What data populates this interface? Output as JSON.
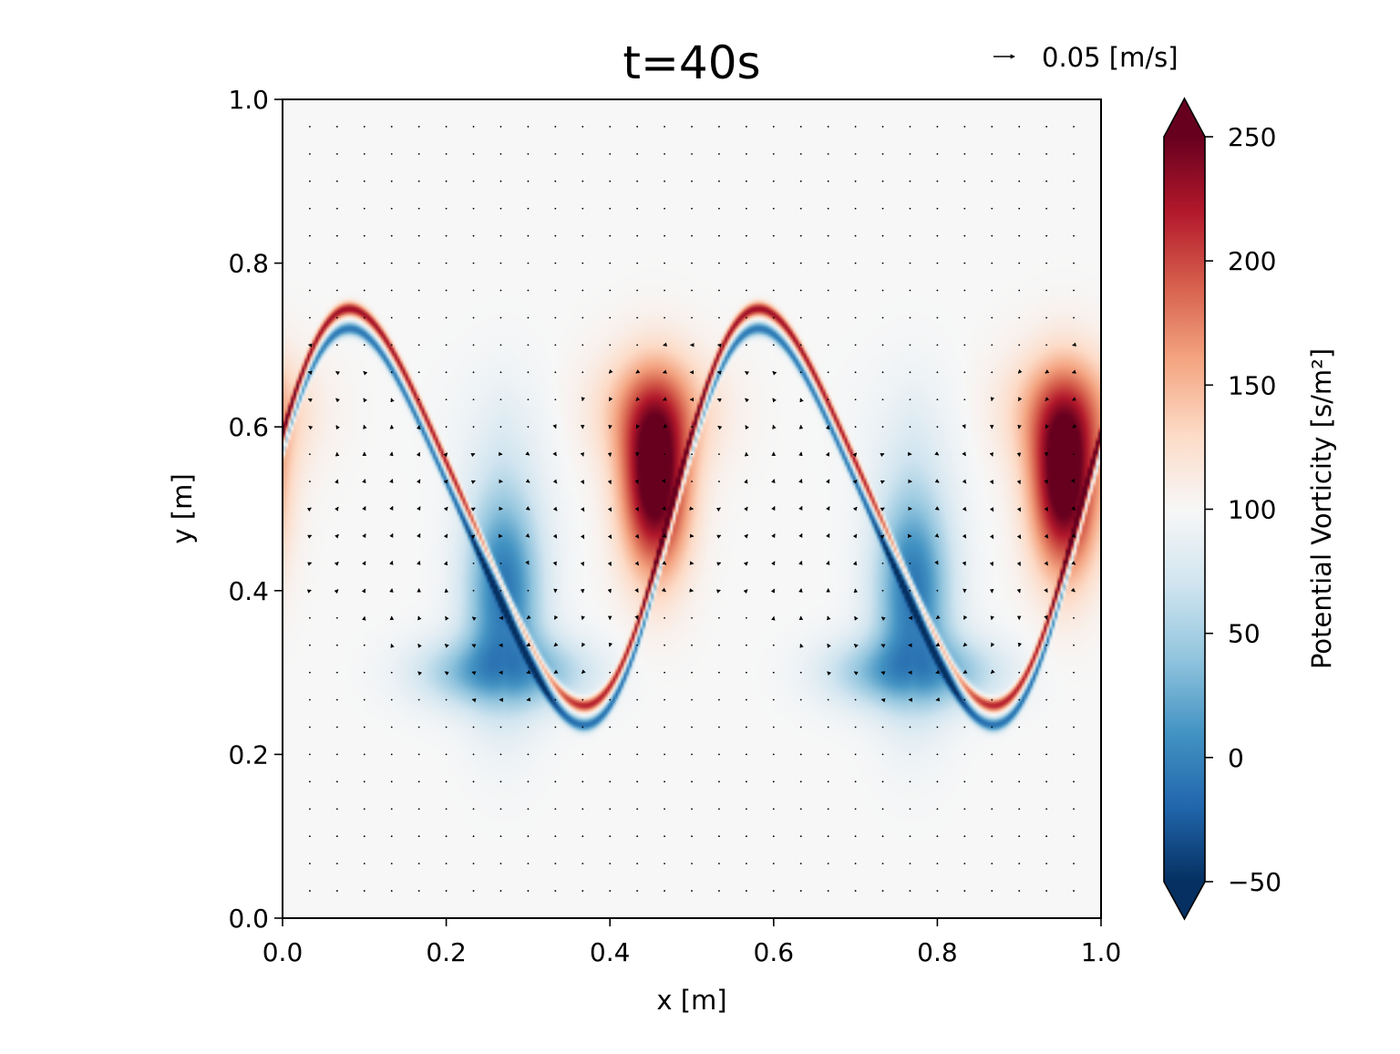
{
  "chart_data": {
    "type": "heatmap",
    "title": "t=40s",
    "xlabel": "x [m]",
    "ylabel": "y [m]",
    "xlim": [
      0.0,
      1.0
    ],
    "ylim": [
      0.0,
      1.0
    ],
    "x_ticks": [
      "0.0",
      "0.2",
      "0.4",
      "0.6",
      "0.8",
      "1.0"
    ],
    "y_ticks": [
      "0.0",
      "0.2",
      "0.4",
      "0.6",
      "0.8",
      "1.0"
    ],
    "field": "Potential Vorticity",
    "colormap": "RdBu_r",
    "colorbar": {
      "label": "Potential Vorticity [s/m²]",
      "range": [
        -50,
        250
      ],
      "ticks": [
        "250",
        "200",
        "150",
        "100",
        "50",
        "0",
        "−50"
      ],
      "extend": "both"
    },
    "quiver_key": {
      "label": "0.05 [m/s]",
      "speed": 0.05
    },
    "description_of_field": {
      "background_value": 100,
      "wave_periods_in_x": 2,
      "red_vortex_cores_x": [
        0.0,
        0.45,
        0.95
      ],
      "blue_vortex_cores_x": [
        0.27,
        0.77
      ],
      "interface_y_range": [
        0.25,
        0.73
      ]
    },
    "grid": false,
    "legend_position": "top-right"
  }
}
